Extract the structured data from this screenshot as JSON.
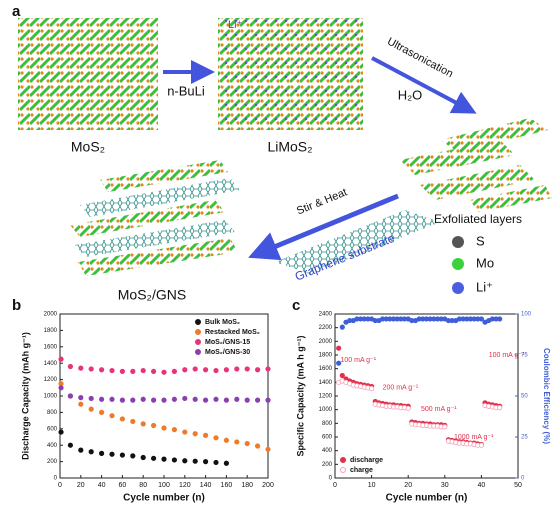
{
  "diagram": {
    "panel_label": "a",
    "labels": {
      "mos2": "MoS₂",
      "reagent": "n-BuLi",
      "li_ion": "Li⁺",
      "limos2": "LiMoS₂",
      "ultrasonication": "Ultrasonication",
      "water": "H₂O",
      "exfoliated": "Exfoliated layers",
      "stir_heat": "Stir & Heat",
      "graphene": "Graphene substrate",
      "composite": "MoS₂/GNS"
    },
    "legend": [
      "S",
      "Mo",
      "Li⁺"
    ]
  },
  "chart_data": [
    {
      "type": "scatter",
      "panel_label": "b",
      "x_label": "Cycle number (n)",
      "y_label": "Discharge Capacity (mAh g⁻¹)",
      "x": [
        1,
        10,
        20,
        30,
        40,
        50,
        60,
        70,
        80,
        90,
        100,
        110,
        120,
        130,
        140,
        150,
        160,
        170,
        180,
        190,
        200
      ],
      "series": [
        {
          "name": "Bulk MoS₂",
          "color": "#111111",
          "values": [
            560,
            400,
            340,
            320,
            300,
            290,
            280,
            270,
            250,
            240,
            230,
            220,
            210,
            205,
            200,
            190,
            180,
            null,
            null,
            null,
            null
          ]
        },
        {
          "name": "Restacked MoS₂",
          "color": "#f07a2a",
          "values": [
            1150,
            1000,
            900,
            840,
            800,
            760,
            720,
            690,
            660,
            640,
            610,
            590,
            560,
            540,
            520,
            490,
            460,
            440,
            420,
            390,
            350
          ]
        },
        {
          "name": "MoS₂/GNS-15",
          "color": "#e8337a",
          "values": [
            1450,
            1360,
            1340,
            1330,
            1320,
            1310,
            1300,
            1300,
            1310,
            1300,
            1290,
            1300,
            1320,
            1330,
            1320,
            1310,
            1320,
            1330,
            1330,
            1320,
            1330
          ]
        },
        {
          "name": "MoS₂/GNS-30",
          "color": "#8a3fb0",
          "values": [
            1100,
            1000,
            980,
            970,
            960,
            960,
            950,
            950,
            960,
            950,
            950,
            960,
            970,
            960,
            950,
            960,
            950,
            960,
            950,
            950,
            950
          ]
        }
      ],
      "xlim": [
        0,
        200
      ],
      "xticks": [
        0,
        20,
        40,
        60,
        80,
        100,
        120,
        140,
        160,
        180,
        200
      ],
      "ylim": [
        0,
        2000
      ],
      "yticks": [
        0,
        200,
        400,
        600,
        800,
        1000,
        1200,
        1400,
        1600,
        1800,
        2000
      ],
      "legend": "upper right"
    },
    {
      "type": "scatter",
      "panel_label": "c",
      "x_label": "Cycle number (n)",
      "y_label": "Specific Capacity (mA h g⁻¹)",
      "y2_label": "Coulombic Efficiency (%)",
      "annotations": [
        "100 mA g⁻¹",
        "200 mA g⁻¹",
        "500 mA g⁻¹",
        "1000 mA g⁻¹",
        "100 mA g⁻¹"
      ],
      "x": [
        1,
        2,
        3,
        4,
        5,
        6,
        7,
        8,
        9,
        10,
        11,
        12,
        13,
        14,
        15,
        16,
        17,
        18,
        19,
        20,
        21,
        22,
        23,
        24,
        25,
        26,
        27,
        28,
        29,
        30,
        31,
        32,
        33,
        34,
        35,
        36,
        37,
        38,
        39,
        40,
        41,
        42,
        43,
        44,
        45
      ],
      "series": [
        {
          "name": "discharge",
          "color": "#e0304a",
          "values": [
            1900,
            1500,
            1450,
            1420,
            1400,
            1380,
            1370,
            1360,
            1350,
            1340,
            1120,
            1100,
            1090,
            1080,
            1070,
            1070,
            1060,
            1060,
            1050,
            1050,
            820,
            810,
            800,
            800,
            790,
            790,
            780,
            780,
            780,
            770,
            560,
            550,
            540,
            530,
            530,
            520,
            510,
            510,
            500,
            490,
            1100,
            1080,
            1070,
            1060,
            1050
          ]
        },
        {
          "name": "charge",
          "color": "#f4a0b4",
          "values": [
            1400,
            1420,
            1400,
            1380,
            1360,
            1350,
            1340,
            1330,
            1320,
            1310,
            1080,
            1070,
            1060,
            1050,
            1050,
            1040,
            1040,
            1030,
            1030,
            1020,
            790,
            780,
            780,
            770,
            770,
            760,
            760,
            760,
            750,
            750,
            540,
            530,
            520,
            510,
            510,
            500,
            500,
            490,
            480,
            480,
            1060,
            1050,
            1040,
            1030,
            1030
          ]
        },
        {
          "color": "#3f5fd8",
          "axis": "y2",
          "values": [
            70,
            92,
            95,
            96,
            96,
            97,
            97,
            97,
            97,
            97,
            96,
            96,
            97,
            97,
            97,
            97,
            97,
            97,
            97,
            97,
            96,
            96,
            97,
            97,
            97,
            97,
            97,
            97,
            97,
            97,
            96,
            96,
            96,
            97,
            97,
            97,
            97,
            97,
            97,
            97,
            95,
            96,
            97,
            97,
            97
          ]
        }
      ],
      "xlim": [
        0,
        50
      ],
      "xticks": [
        0,
        10,
        20,
        30,
        40,
        50
      ],
      "ylim": [
        0,
        2400
      ],
      "yticks": [
        0,
        200,
        400,
        600,
        800,
        1000,
        1200,
        1400,
        1600,
        1800,
        2000,
        2200,
        2400
      ],
      "y2lim": [
        0,
        100
      ],
      "y2ticks": [
        0,
        25,
        50,
        75,
        100
      ],
      "legend": "lower left"
    }
  ]
}
